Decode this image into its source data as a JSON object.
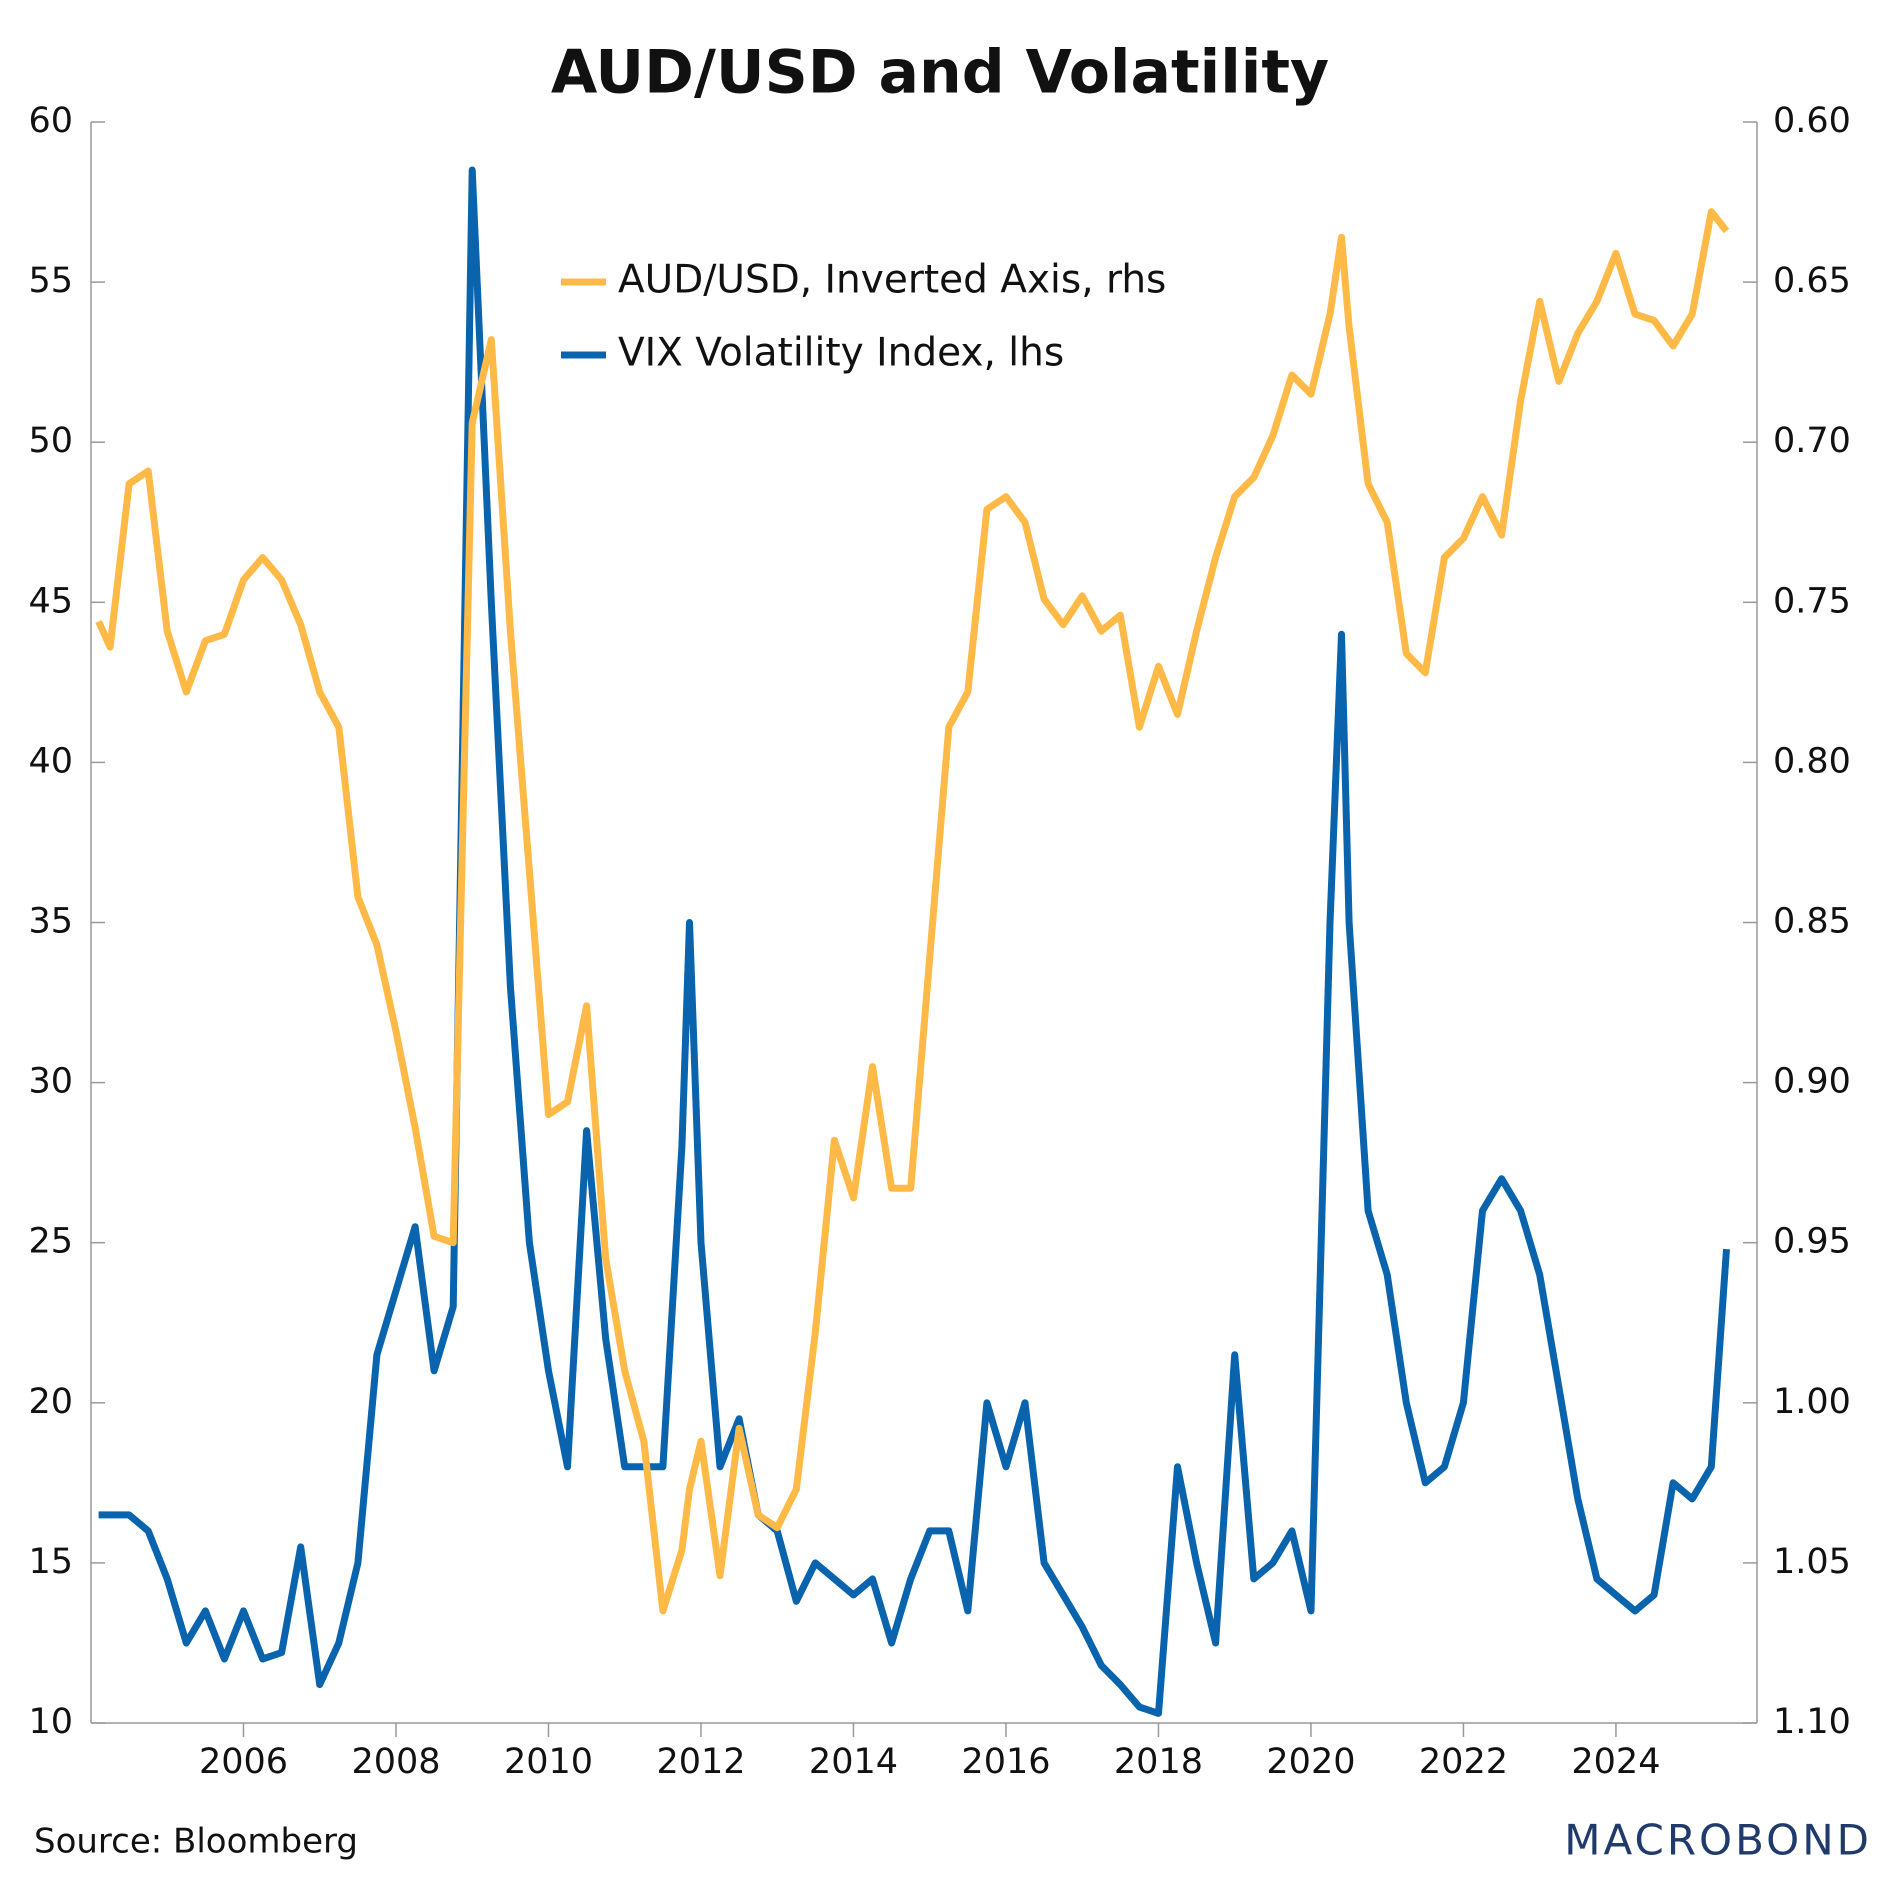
{
  "chart_data": {
    "type": "line",
    "title": "AUD/USD and Volatility",
    "source": "Source: Bloomberg",
    "logo": "MACROBOND",
    "x": [
      2004.1,
      2004.25,
      2004.5,
      2004.75,
      2005.0,
      2005.25,
      2005.5,
      2005.75,
      2006.0,
      2006.25,
      2006.5,
      2006.75,
      2007.0,
      2007.25,
      2007.5,
      2007.75,
      2008.0,
      2008.25,
      2008.5,
      2008.75,
      2009.0,
      2009.25,
      2009.5,
      2009.75,
      2010.0,
      2010.25,
      2010.5,
      2010.75,
      2011.0,
      2011.25,
      2011.5,
      2011.75,
      2011.85,
      2012.0,
      2012.25,
      2012.5,
      2012.75,
      2013.0,
      2013.25,
      2013.5,
      2013.75,
      2014.0,
      2014.25,
      2014.5,
      2014.75,
      2015.0,
      2015.25,
      2015.5,
      2015.75,
      2016.0,
      2016.25,
      2016.5,
      2016.75,
      2017.0,
      2017.25,
      2017.5,
      2017.75,
      2018.0,
      2018.25,
      2018.5,
      2018.75,
      2019.0,
      2019.25,
      2019.5,
      2019.75,
      2020.0,
      2020.25,
      2020.4,
      2020.5,
      2020.75,
      2021.0,
      2021.25,
      2021.5,
      2021.75,
      2022.0,
      2022.25,
      2022.5,
      2022.75,
      2023.0,
      2023.25,
      2023.5,
      2023.75,
      2024.0,
      2024.25,
      2024.5,
      2024.75,
      2025.0,
      2025.25,
      2025.45
    ],
    "series": [
      {
        "name": "AUD/USD, Inverted Axis, rhs",
        "color": "#ffb947",
        "axis": "y2",
        "values": [
          0.756,
          0.764,
          0.713,
          0.709,
          0.759,
          0.778,
          0.762,
          0.76,
          0.743,
          0.736,
          0.743,
          0.757,
          0.778,
          0.789,
          0.842,
          0.857,
          0.884,
          0.914,
          0.948,
          0.95,
          0.694,
          0.668,
          0.759,
          0.834,
          0.91,
          0.906,
          0.876,
          0.955,
          0.99,
          1.012,
          1.065,
          1.046,
          1.027,
          1.012,
          1.054,
          1.008,
          1.035,
          1.039,
          1.027,
          0.978,
          0.918,
          0.936,
          0.895,
          0.933,
          0.933,
          0.861,
          0.789,
          0.778,
          0.721,
          0.717,
          0.725,
          0.749,
          0.757,
          0.748,
          0.759,
          0.754,
          0.789,
          0.77,
          0.785,
          0.759,
          0.736,
          0.717,
          0.711,
          0.698,
          0.679,
          0.685,
          0.66,
          0.636,
          0.664,
          0.713,
          0.725,
          0.766,
          0.772,
          0.736,
          0.73,
          0.717,
          0.729,
          0.687,
          0.656,
          0.681,
          0.666,
          0.656,
          0.641,
          0.66,
          0.662,
          0.67,
          0.66,
          0.628,
          0.634
        ]
      },
      {
        "name": "VIX Volatility Index, lhs",
        "color": "#0a64ad",
        "values": [
          16.5,
          16.5,
          16.5,
          16,
          14.5,
          12.5,
          13.5,
          12,
          13.5,
          12,
          12.2,
          15.5,
          11.2,
          12.5,
          15,
          21.5,
          23.5,
          25.5,
          21,
          23,
          58.5,
          45,
          33,
          25,
          21,
          18,
          28.5,
          22,
          18,
          18,
          18,
          28,
          35,
          25,
          18,
          19.5,
          16.5,
          16,
          13.8,
          15,
          14.5,
          14,
          14.5,
          12.5,
          14.5,
          16,
          16,
          13.5,
          20,
          18,
          20,
          15,
          14,
          13,
          11.8,
          11.2,
          10.5,
          10.3,
          18,
          15,
          12.5,
          21.5,
          14.5,
          15,
          16,
          13.5,
          35,
          44,
          35,
          26,
          24,
          20,
          17.5,
          18,
          20,
          26,
          27,
          26,
          24,
          20.5,
          17,
          14.5,
          14,
          13.5,
          14,
          17.5,
          17,
          18,
          24.8
        ]
      }
    ],
    "xlim": [
      2004.0,
      2025.85
    ],
    "xticks": [
      2006,
      2008,
      2010,
      2012,
      2014,
      2016,
      2018,
      2020,
      2022,
      2024
    ],
    "ylim": [
      10,
      60
    ],
    "yticks": [
      10,
      15,
      20,
      25,
      30,
      35,
      40,
      45,
      50,
      55,
      60
    ],
    "y2lim": [
      1.1,
      0.6
    ],
    "y2ticks": [
      {
        "value": 0.6,
        "label": "0.60"
      },
      {
        "value": 0.65,
        "label": "0.65"
      },
      {
        "value": 0.7,
        "label": "0.70"
      },
      {
        "value": 0.75,
        "label": "0.75"
      },
      {
        "value": 0.8,
        "label": "0.80"
      },
      {
        "value": 0.85,
        "label": "0.85"
      },
      {
        "value": 0.9,
        "label": "0.90"
      },
      {
        "value": 0.95,
        "label": "0.95"
      },
      {
        "value": 1.0,
        "label": "1.00"
      },
      {
        "value": 1.05,
        "label": "1.05"
      },
      {
        "value": 1.1,
        "label": "1.10"
      }
    ],
    "grid": false,
    "legend": "top"
  }
}
